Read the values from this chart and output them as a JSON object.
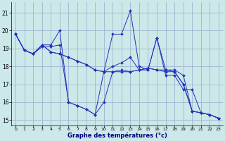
{
  "background_color": "#cce8e8",
  "grid_color": "#99aacc",
  "line_color": "#2233bb",
  "xlabel": "Graphe des températures (°c)",
  "xlim": [
    -0.5,
    23.5
  ],
  "ylim": [
    14.7,
    21.6
  ],
  "yticks": [
    15,
    16,
    17,
    18,
    19,
    20,
    21
  ],
  "xticks": [
    0,
    1,
    2,
    3,
    4,
    5,
    6,
    7,
    8,
    9,
    10,
    11,
    12,
    13,
    14,
    15,
    16,
    17,
    18,
    19,
    20,
    21,
    22,
    23
  ],
  "series": [
    [
      19.8,
      18.9,
      18.7,
      19.2,
      19.2,
      20.0,
      16.0,
      15.8,
      15.6,
      15.3,
      17.7,
      19.8,
      19.8,
      21.1,
      18.0,
      17.8,
      19.6,
      17.8,
      17.8,
      17.5,
      15.5,
      15.4,
      15.3,
      15.1
    ],
    [
      19.8,
      18.9,
      18.7,
      19.2,
      18.8,
      18.7,
      18.5,
      18.3,
      18.1,
      17.8,
      17.7,
      17.7,
      17.8,
      17.7,
      17.8,
      17.9,
      17.8,
      17.7,
      17.7,
      17.0,
      15.5,
      15.4,
      15.3,
      15.1
    ],
    [
      19.8,
      18.9,
      18.7,
      19.2,
      18.8,
      18.7,
      18.5,
      18.3,
      18.1,
      17.8,
      17.7,
      18.0,
      18.2,
      18.5,
      17.8,
      17.9,
      17.8,
      17.8,
      17.7,
      17.0,
      15.5,
      15.4,
      15.3,
      15.1
    ],
    [
      19.8,
      18.9,
      18.7,
      19.1,
      19.1,
      19.2,
      16.0,
      15.8,
      15.6,
      15.3,
      16.0,
      17.7,
      17.7,
      17.7,
      17.8,
      17.8,
      19.6,
      17.5,
      17.5,
      16.7,
      16.7,
      15.4,
      15.3,
      15.1
    ]
  ]
}
